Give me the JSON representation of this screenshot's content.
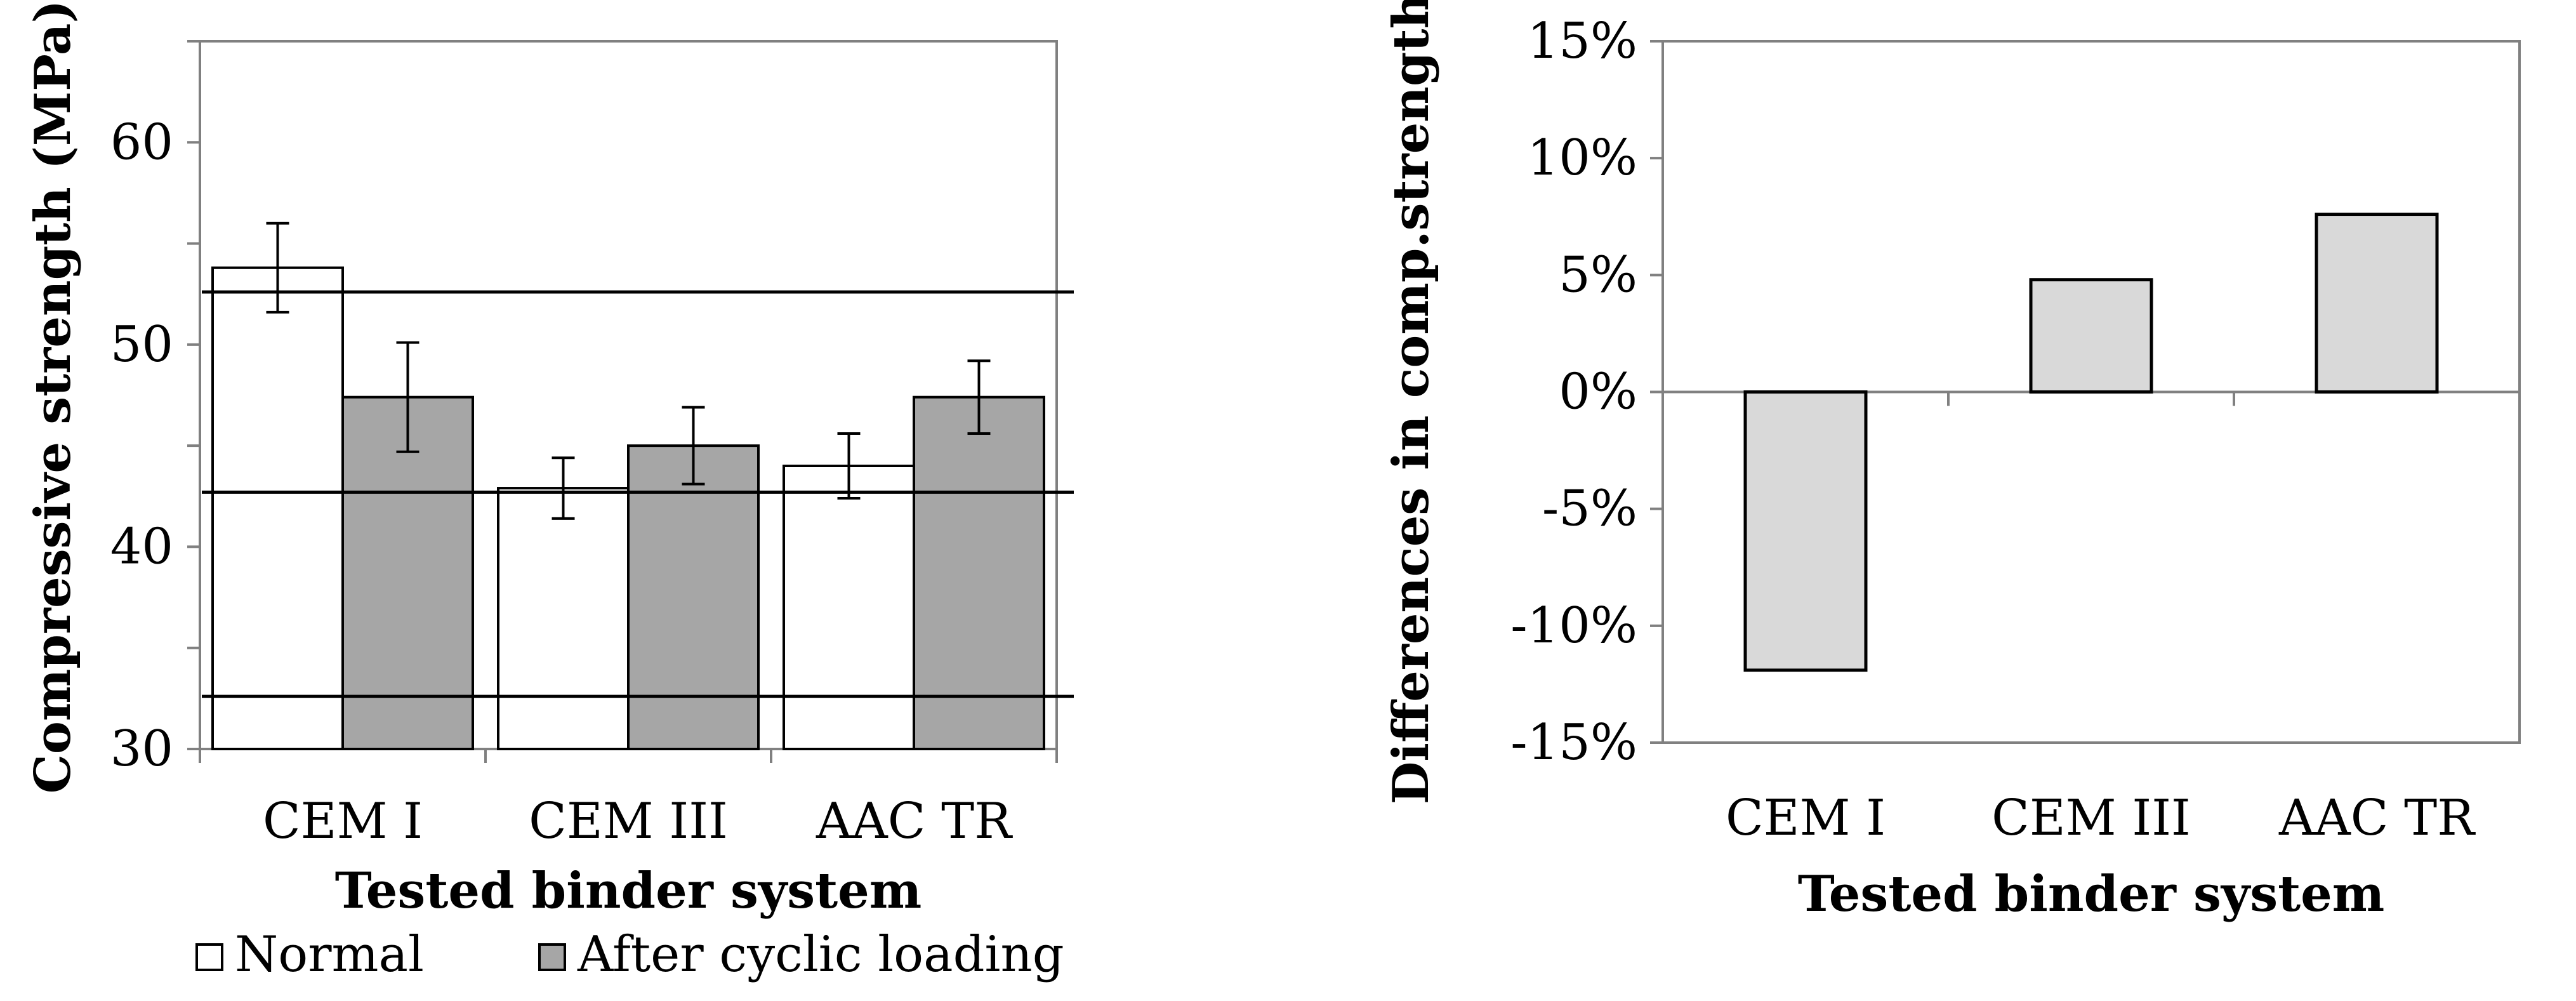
{
  "chart_data": [
    {
      "type": "bar",
      "categories": [
        "CEM I",
        "CEM III",
        "AAC TR"
      ],
      "series": [
        {
          "name": "Normal",
          "values": [
            53.8,
            42.9,
            44.0
          ],
          "errors": [
            2.2,
            1.5,
            1.6
          ],
          "color": "#ffffff"
        },
        {
          "name": "After cyclic loading",
          "values": [
            47.4,
            45.0,
            47.4
          ],
          "errors": [
            2.7,
            1.9,
            1.8
          ],
          "color": "#a6a6a6"
        }
      ],
      "reference_lines": [
        52.6,
        42.7,
        32.6
      ],
      "xlabel": "Tested binder system",
      "ylabel": "Compressive strength (MPa)",
      "ylim": [
        30,
        65
      ],
      "yticks": [
        "30",
        "40",
        "50",
        "60"
      ],
      "grid": false,
      "legend": "bottom"
    },
    {
      "type": "bar",
      "categories": [
        "CEM I",
        "CEM III",
        "AAC TR"
      ],
      "values": [
        -0.119,
        0.048,
        0.076
      ],
      "color": "#d9d9d9",
      "xlabel": "Tested binder system",
      "ylabel": "Differences in comp.strength",
      "ylim": [
        -0.15,
        0.15
      ],
      "yticks": [
        "-15%",
        "-10%",
        "-5%",
        "0%",
        "5%",
        "10%",
        "15%"
      ],
      "grid": false
    }
  ]
}
